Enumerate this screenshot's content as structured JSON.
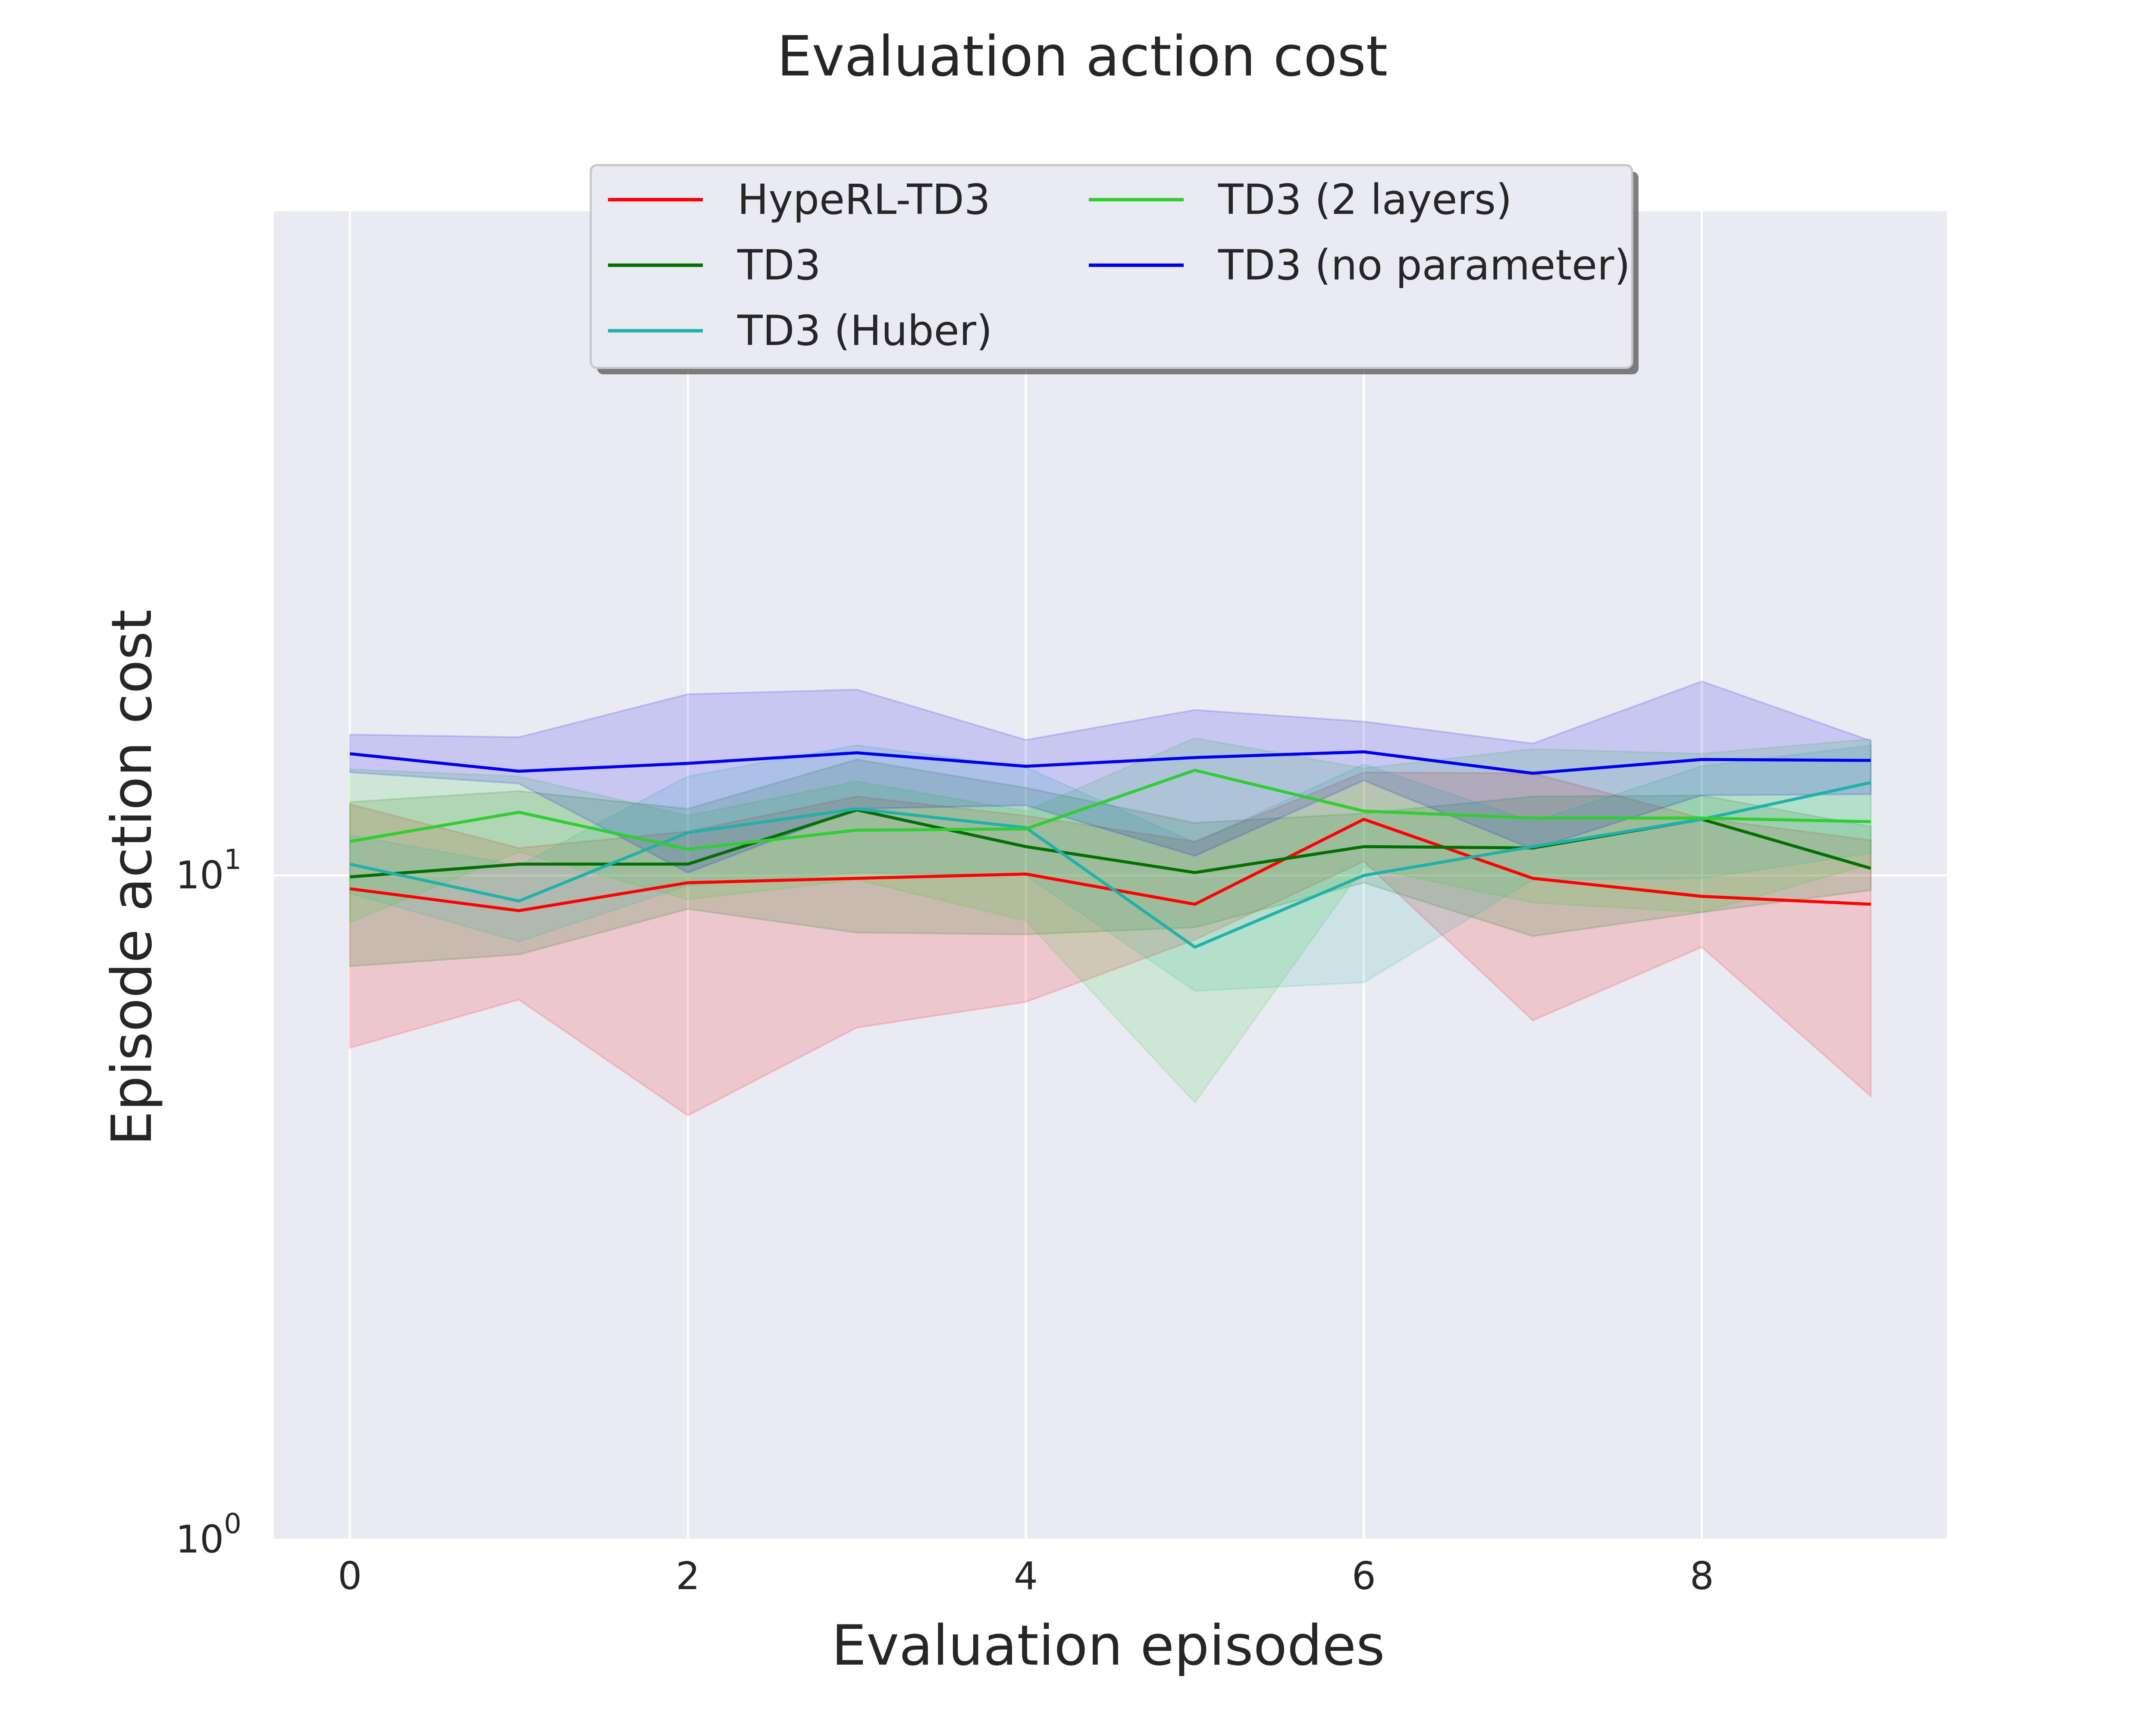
{
  "chart_data": {
    "type": "line",
    "title": "Evaluation action cost",
    "xlabel": "Evaluation episodes",
    "ylabel": "Episode action cost",
    "yscale": "log",
    "xlim": [
      -0.45,
      9.45
    ],
    "ylim": [
      1,
      100
    ],
    "xticks": [
      0,
      2,
      4,
      6,
      8
    ],
    "xtick_labels": [
      "0",
      "2",
      "4",
      "6",
      "8"
    ],
    "yticks": [
      {
        "value": 1,
        "base": "10",
        "exp": "0"
      },
      {
        "value": 10,
        "base": "10",
        "exp": "1"
      }
    ],
    "grid": true,
    "legend": {
      "location": "upper center",
      "columns": 2
    },
    "x": [
      0,
      1,
      2,
      3,
      4,
      5,
      6,
      7,
      8,
      9
    ],
    "series": [
      {
        "name": "HypeRL-TD3",
        "color": "#ff0000",
        "values": [
          9.55,
          8.85,
          9.75,
          9.9,
          10.05,
          9.05,
          12.15,
          9.9,
          9.3,
          9.05
        ],
        "lower": [
          5.5,
          6.5,
          4.35,
          5.9,
          6.45,
          8.0,
          10.5,
          6.05,
          7.8,
          4.65
        ],
        "upper": [
          12.8,
          11.0,
          11.65,
          13.15,
          12.3,
          11.25,
          14.3,
          14.25,
          12.2,
          11.3
        ]
      },
      {
        "name": "TD3",
        "color": "#007000",
        "values": [
          9.95,
          10.4,
          10.4,
          12.55,
          11.05,
          10.1,
          11.05,
          11.0,
          12.15,
          10.25
        ],
        "lower": [
          7.3,
          7.6,
          8.9,
          8.2,
          8.15,
          8.35,
          9.75,
          8.1,
          8.8,
          9.5
        ],
        "upper": [
          12.9,
          13.4,
          12.6,
          14.95,
          13.55,
          12.0,
          12.4,
          13.15,
          13.2,
          11.85
        ]
      },
      {
        "name": "TD3 (Huber)",
        "color": "#20b2aa",
        "values": [
          10.4,
          9.15,
          11.6,
          12.6,
          11.8,
          7.8,
          10.0,
          11.05,
          12.15,
          13.8
        ],
        "lower": [
          9.4,
          7.95,
          9.65,
          10.1,
          10.0,
          6.7,
          6.9,
          9.85,
          9.9,
          10.8
        ],
        "upper": [
          11.5,
          10.35,
          14.1,
          15.7,
          14.55,
          11.2,
          14.7,
          12.05,
          14.6,
          15.7
        ]
      },
      {
        "name": "TD3 (2 layers)",
        "color": "#32cd32",
        "values": [
          11.25,
          12.45,
          10.95,
          11.7,
          11.75,
          14.4,
          12.5,
          12.2,
          12.2,
          12.05
        ],
        "lower": [
          8.5,
          10.85,
          9.2,
          9.85,
          8.55,
          4.55,
          10.3,
          9.1,
          8.8,
          10.4
        ],
        "upper": [
          14.45,
          14.1,
          12.3,
          13.85,
          12.5,
          16.1,
          14.5,
          15.5,
          15.25,
          16.05
        ]
      },
      {
        "name": "TD3 (no parameter)",
        "color": "#0000ee",
        "values": [
          15.25,
          14.35,
          14.75,
          15.3,
          14.6,
          15.05,
          15.35,
          14.25,
          14.95,
          14.9
        ],
        "lower": [
          14.3,
          13.75,
          10.1,
          12.6,
          12.75,
          10.7,
          13.9,
          10.95,
          13.2,
          13.25
        ],
        "upper": [
          16.3,
          16.15,
          18.75,
          19.05,
          16.0,
          17.75,
          17.05,
          15.8,
          19.6,
          15.95
        ]
      }
    ]
  }
}
